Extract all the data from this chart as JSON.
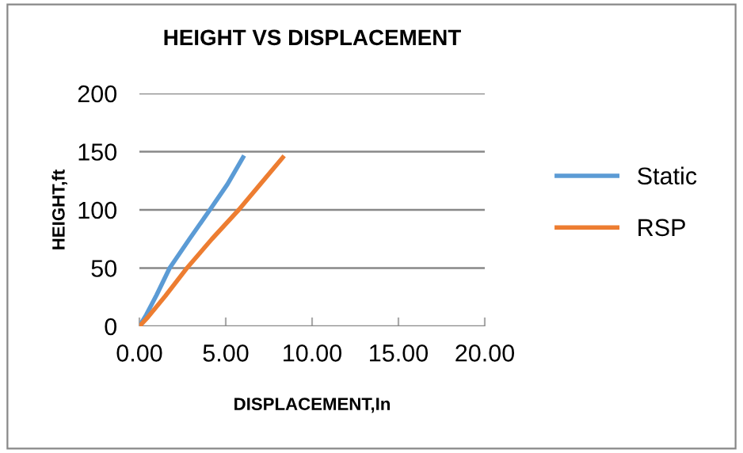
{
  "chart_data": {
    "type": "line",
    "title": "HEIGHT VS DISPLACEMENT",
    "xlabel": "DISPLACEMENT,In",
    "ylabel": "HEIGHT,ft",
    "series": [
      {
        "name": "Static",
        "color": "#5b9bd5",
        "x": [
          0,
          0.4,
          1.0,
          1.75,
          2.9,
          4.08,
          5.1,
          6.0
        ],
        "values": [
          0,
          10,
          27,
          50,
          75,
          100,
          122,
          145
        ]
      },
      {
        "name": "RSP",
        "color": "#ed7d31",
        "x": [
          0,
          0.5,
          1.5,
          2.75,
          4.2,
          5.75,
          7.0,
          8.3
        ],
        "values": [
          0,
          8,
          26,
          50,
          75,
          100,
          122,
          145
        ]
      }
    ],
    "xlim": [
      0,
      20
    ],
    "xticks": [
      {
        "value": 0,
        "label": "0.00"
      },
      {
        "value": 5,
        "label": "5.00"
      },
      {
        "value": 10,
        "label": "10.00"
      },
      {
        "value": 15,
        "label": "15.00"
      },
      {
        "value": 20,
        "label": "20.00"
      }
    ],
    "ylim": [
      0,
      200
    ],
    "yticks": [
      0,
      50,
      100,
      150,
      200
    ],
    "grid": "y",
    "legend": "right",
    "marker": "none",
    "line_style": "solid"
  }
}
